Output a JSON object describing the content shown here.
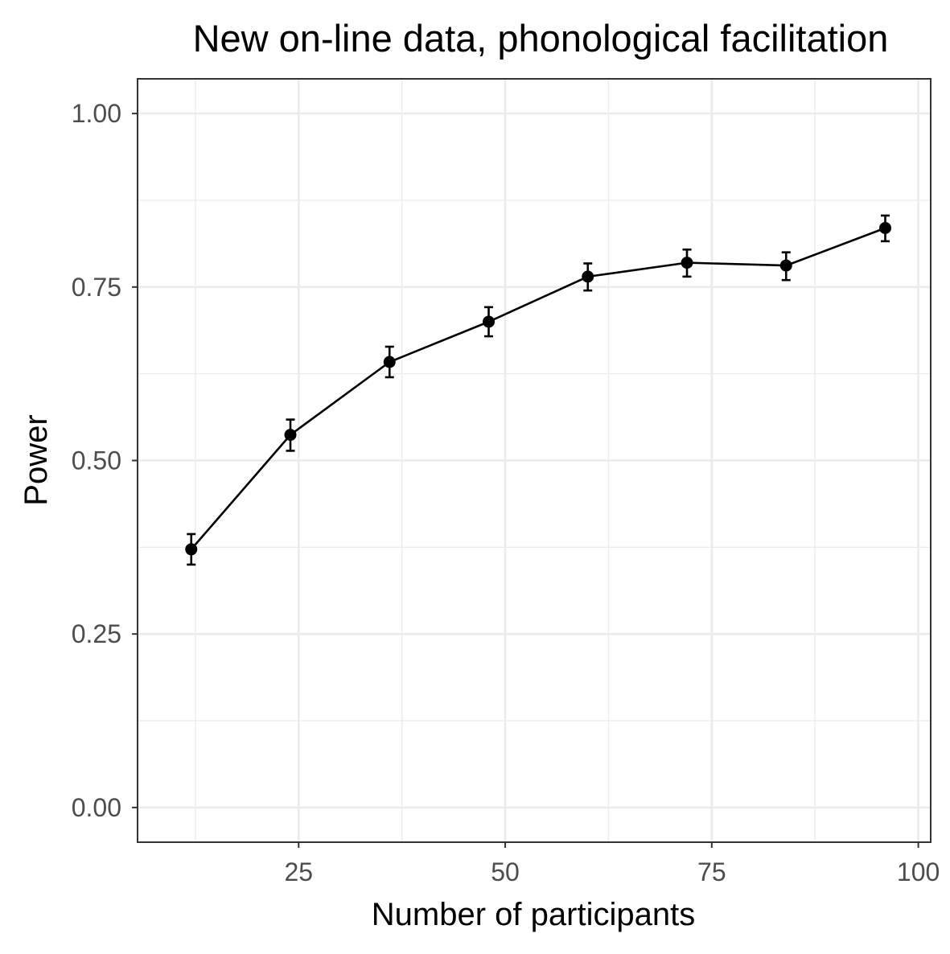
{
  "chart_data": {
    "type": "line",
    "title": "New on-line data, phonological facilitation",
    "xlabel": "Number of participants",
    "ylabel": "Power",
    "xlim": [
      5.5,
      101.5
    ],
    "ylim": [
      -0.05,
      1.05
    ],
    "x_ticks": [
      25,
      50,
      75,
      100
    ],
    "x_tick_labels": [
      "25",
      "50",
      "75",
      "100"
    ],
    "x_minor_ticks": [
      12.5,
      37.5,
      62.5,
      87.5
    ],
    "y_ticks": [
      0,
      0.25,
      0.5,
      0.75,
      1.0
    ],
    "y_tick_labels": [
      "0.00",
      "0.25",
      "0.50",
      "0.75",
      "1.00"
    ],
    "y_minor_ticks": [
      0.125,
      0.375,
      0.625,
      0.875
    ],
    "grid": true,
    "legend": "none",
    "colors": {
      "line": "#000000",
      "point": "#000000",
      "grid": "#ebebeb",
      "panel_border": "#333333",
      "tick_label": "#4d4d4d"
    },
    "series": [
      {
        "x": [
          12,
          24,
          36,
          48,
          60,
          72,
          84,
          96
        ],
        "y": [
          0.372,
          0.537,
          0.642,
          0.7,
          0.765,
          0.785,
          0.781,
          0.835
        ],
        "error_low": [
          0.35,
          0.514,
          0.62,
          0.679,
          0.745,
          0.765,
          0.76,
          0.816
        ],
        "error_high": [
          0.394,
          0.559,
          0.664,
          0.721,
          0.784,
          0.804,
          0.8,
          0.853
        ]
      }
    ]
  }
}
